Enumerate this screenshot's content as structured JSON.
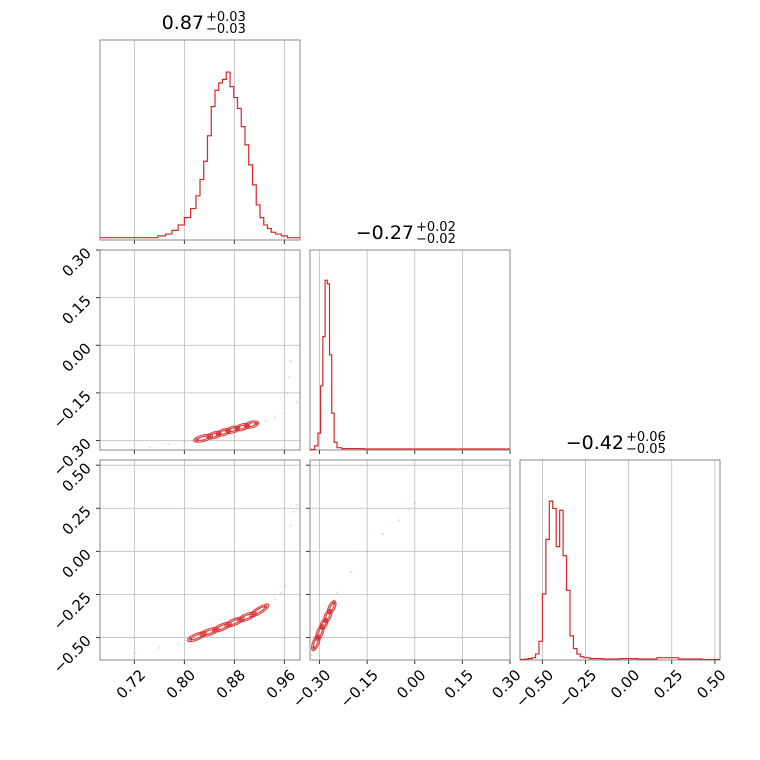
{
  "chart_data": {
    "type": "corner",
    "color": "#d62728",
    "parameters": [
      {
        "median": "0.87",
        "plus": "+0.03",
        "minus": "−0.03",
        "range": [
          0.665,
          0.985
        ],
        "ticks": [
          0.72,
          0.8,
          0.88,
          0.96
        ],
        "tick_labels": [
          "0.72",
          "0.80",
          "0.88",
          "0.96"
        ]
      },
      {
        "median": "−0.27",
        "plus": "+0.02",
        "minus": "−0.02",
        "range": [
          -0.33,
          0.3
        ],
        "ticks": [
          -0.3,
          -0.15,
          0.0,
          0.15,
          0.3
        ],
        "tick_labels": [
          "−0.30",
          "−0.15",
          "0.00",
          "0.15",
          "0.30"
        ]
      },
      {
        "median": "−0.42",
        "plus": "+0.06",
        "minus": "−0.05",
        "range": [
          -0.63,
          0.53
        ],
        "ticks": [
          -0.5,
          -0.25,
          0.0,
          0.25,
          0.5
        ],
        "tick_labels": [
          "−0.50",
          "−0.25",
          "0.00",
          "0.25",
          "0.50"
        ]
      }
    ],
    "histograms": [
      {
        "param": 0,
        "bin_centers": [
          0.67,
          0.69,
          0.71,
          0.73,
          0.75,
          0.765,
          0.775,
          0.785,
          0.795,
          0.805,
          0.815,
          0.822,
          0.828,
          0.834,
          0.84,
          0.846,
          0.852,
          0.858,
          0.864,
          0.87,
          0.876,
          0.882,
          0.888,
          0.894,
          0.9,
          0.906,
          0.912,
          0.918,
          0.924,
          0.93,
          0.936,
          0.942,
          0.95,
          0.96,
          0.97,
          0.98
        ],
        "density": [
          0.01,
          0.01,
          0.01,
          0.01,
          0.01,
          0.02,
          0.03,
          0.05,
          0.08,
          0.12,
          0.17,
          0.24,
          0.33,
          0.43,
          0.57,
          0.73,
          0.82,
          0.86,
          0.88,
          0.92,
          0.84,
          0.78,
          0.72,
          0.62,
          0.52,
          0.41,
          0.3,
          0.19,
          0.12,
          0.08,
          0.06,
          0.04,
          0.03,
          0.02,
          0.01,
          0.01
        ]
      },
      {
        "param": 1,
        "bin_centers": [
          -0.32,
          -0.31,
          -0.3,
          -0.293,
          -0.286,
          -0.279,
          -0.272,
          -0.265,
          -0.258,
          -0.25,
          -0.24,
          -0.22,
          -0.1,
          0.0,
          0.15,
          0.29
        ],
        "density": [
          0.0,
          0.02,
          0.09,
          0.35,
          0.62,
          0.93,
          0.91,
          0.52,
          0.2,
          0.04,
          0.01,
          0.005,
          0.003,
          0.003,
          0.003,
          0.003
        ]
      },
      {
        "param": 2,
        "bin_centers": [
          -0.61,
          -0.59,
          -0.57,
          -0.55,
          -0.53,
          -0.51,
          -0.49,
          -0.47,
          -0.45,
          -0.43,
          -0.41,
          -0.39,
          -0.37,
          -0.35,
          -0.33,
          -0.31,
          -0.29,
          -0.27,
          -0.25,
          -0.2,
          -0.1,
          0.0,
          0.1,
          0.23,
          0.35,
          0.5
        ],
        "density": [
          0.0,
          0.003,
          0.005,
          0.01,
          0.03,
          0.1,
          0.36,
          0.66,
          0.87,
          0.83,
          0.62,
          0.82,
          0.57,
          0.38,
          0.13,
          0.06,
          0.03,
          0.015,
          0.01,
          0.005,
          0.003,
          0.005,
          0.003,
          0.01,
          0.003,
          0.0
        ]
      }
    ],
    "scatter": [
      {
        "x_param": 0,
        "y_param": 1,
        "core_points": [
          [
            0.82,
            -0.298
          ],
          [
            0.84,
            -0.288
          ],
          [
            0.855,
            -0.279
          ],
          [
            0.87,
            -0.27
          ],
          [
            0.885,
            -0.262
          ],
          [
            0.9,
            -0.254
          ],
          [
            0.915,
            -0.246
          ]
        ],
        "tail_points": [
          [
            0.715,
            -0.33
          ],
          [
            0.745,
            -0.322
          ],
          [
            0.775,
            -0.312
          ],
          [
            0.8,
            -0.305
          ],
          [
            0.93,
            -0.238
          ],
          [
            0.945,
            -0.228
          ],
          [
            0.96,
            -0.215
          ],
          [
            0.965,
            -0.15
          ],
          [
            0.968,
            -0.1
          ],
          [
            0.97,
            -0.05
          ],
          [
            0.98,
            -0.18
          ]
        ]
      },
      {
        "x_param": 0,
        "y_param": 2,
        "core_points": [
          [
            0.81,
            -0.51
          ],
          [
            0.83,
            -0.48
          ],
          [
            0.85,
            -0.455
          ],
          [
            0.87,
            -0.425
          ],
          [
            0.89,
            -0.395
          ],
          [
            0.91,
            -0.365
          ],
          [
            0.93,
            -0.32
          ]
        ],
        "tail_points": [
          [
            0.72,
            -0.59
          ],
          [
            0.76,
            -0.56
          ],
          [
            0.79,
            -0.535
          ],
          [
            0.945,
            -0.28
          ],
          [
            0.955,
            -0.24
          ],
          [
            0.962,
            -0.2
          ],
          [
            0.97,
            0.15
          ],
          [
            0.975,
            0.23
          ],
          [
            0.98,
            0.27
          ]
        ]
      },
      {
        "x_param": 1,
        "y_param": 2,
        "core_points": [
          [
            -0.318,
            -0.56
          ],
          [
            -0.305,
            -0.5
          ],
          [
            -0.292,
            -0.44
          ],
          [
            -0.28,
            -0.4
          ],
          [
            -0.268,
            -0.35
          ],
          [
            -0.255,
            -0.3
          ]
        ],
        "tail_points": [
          [
            -0.325,
            -0.6
          ],
          [
            -0.245,
            -0.24
          ],
          [
            -0.2,
            -0.12
          ],
          [
            -0.15,
            0.0
          ],
          [
            -0.1,
            0.1
          ],
          [
            -0.05,
            0.18
          ],
          [
            -0.02,
            0.24
          ],
          [
            0.0,
            0.28
          ]
        ]
      }
    ]
  }
}
